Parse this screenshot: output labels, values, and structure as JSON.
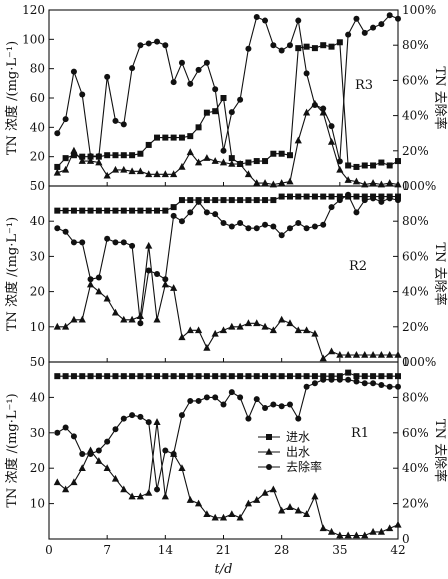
{
  "chart_data": {
    "type": "line",
    "xlabel": "t/d",
    "x_ticks": [
      0,
      7,
      14,
      21,
      28,
      35,
      42
    ],
    "x": [
      1,
      2,
      3,
      4,
      5,
      6,
      7,
      8,
      9,
      10,
      11,
      12,
      13,
      14,
      15,
      16,
      17,
      18,
      19,
      20,
      21,
      22,
      23,
      24,
      25,
      26,
      27,
      28,
      29,
      30,
      31,
      32,
      33,
      34,
      35,
      36,
      37,
      38,
      39,
      40,
      41,
      42
    ],
    "legend": [
      "进水",
      "出水",
      "去除率"
    ],
    "panels": [
      {
        "id": "R3",
        "label": "R3",
        "ylabel": "TN 浓度 /(mg·L⁻¹)",
        "y2label": "TN 去除率",
        "ylim": [
          0,
          120
        ],
        "yticks": [
          20,
          40,
          60,
          80,
          100,
          120
        ],
        "y2lim": [
          0,
          100
        ],
        "y2ticks": [
          "0",
          "20%",
          "40%",
          "60%",
          "80%",
          "100%"
        ],
        "series": [
          {
            "name": "进水",
            "marker": "square",
            "values": [
              13,
              19,
              21,
              20,
              20,
              20,
              21,
              21,
              21,
              21,
              22,
              28,
              33,
              33,
              33,
              33,
              34,
              40,
              50,
              51,
              60,
              19,
              15,
              16,
              17,
              17,
              22,
              22,
              21,
              94,
              95,
              94,
              96,
              95,
              98,
              14,
              13,
              14,
              14,
              16,
              14,
              17
            ]
          },
          {
            "name": "出水",
            "marker": "triangle",
            "values": [
              9,
              11,
              24,
              17,
              17,
              16,
              7,
              11,
              11,
              10,
              10,
              8,
              8,
              8,
              8,
              13,
              23,
              16,
              19,
              17,
              16,
              15,
              15,
              8,
              2,
              2,
              1,
              2,
              3,
              31,
              50,
              56,
              50,
              30,
              11,
              4,
              3,
              1,
              2,
              1,
              2,
              1
            ]
          },
          {
            "name": "去除率",
            "marker": "circle",
            "values": [
              30,
              38,
              65,
              52,
              17,
              17,
              62,
              37,
              35,
              67,
              80,
              81,
              82,
              80,
              59,
              70,
              58,
              66,
              70,
              55,
              20,
              42,
              49,
              78,
              96,
              94,
              80,
              77,
              80,
              94,
              64,
              46,
              44,
              34,
              14,
              86,
              95,
              87,
              90,
              92,
              97,
              95
            ]
          }
        ]
      },
      {
        "id": "R2",
        "label": "R2",
        "ylabel": "TN 浓度 /(mg·L⁻¹)",
        "y2label": "TN 去除率",
        "ylim": [
          0,
          50
        ],
        "yticks": [
          10,
          20,
          30,
          40,
          50
        ],
        "y2lim": [
          0,
          100
        ],
        "y2ticks": [
          "0",
          "20%",
          "40%",
          "60%",
          "80%",
          "100%"
        ],
        "series": [
          {
            "name": "进水",
            "marker": "square",
            "values": [
              43,
              43,
              43,
              43,
              43,
              43,
              43,
              43,
              43,
              43,
              43,
              43,
              43,
              43,
              44,
              46,
              46,
              46,
              46,
              46,
              46,
              46,
              46,
              46,
              46,
              46,
              46,
              47,
              47,
              47,
              47,
              47,
              47,
              47,
              47,
              47,
              47,
              47,
              47,
              47,
              47,
              47
            ]
          },
          {
            "name": "出水",
            "marker": "triangle",
            "values": [
              10,
              10,
              12,
              12,
              22,
              20,
              18,
              14,
              12,
              12,
              13,
              33,
              12,
              22,
              21,
              7,
              9,
              9,
              4,
              8,
              9,
              10,
              10,
              11,
              11,
              10,
              9,
              12,
              11,
              9,
              9,
              8,
              1,
              3,
              2,
              2,
              2,
              2,
              2,
              2,
              2,
              2
            ]
          },
          {
            "name": "去除率",
            "marker": "circle",
            "values": [
              76,
              74,
              68,
              68,
              47,
              48,
              70,
              68,
              68,
              66,
              22,
              52,
              50,
              47,
              83,
              80,
              85,
              91,
              85,
              84,
              79,
              77,
              79,
              76,
              76,
              78,
              77,
              72,
              76,
              79,
              76,
              77,
              78,
              88,
              92,
              95,
              85,
              92,
              93,
              91,
              93,
              92
            ]
          }
        ]
      },
      {
        "id": "R1",
        "label": "R1",
        "ylabel": "TN 浓度 /(mg·L⁻¹)",
        "y2label": "TN 去除率",
        "ylim": [
          0,
          50
        ],
        "yticks": [
          10,
          20,
          30,
          40,
          50
        ],
        "y2lim": [
          0,
          100
        ],
        "y2ticks": [
          "0",
          "20%",
          "40%",
          "60%",
          "80%",
          "100%"
        ],
        "series": [
          {
            "name": "进水",
            "marker": "square",
            "values": [
              46,
              46,
              46,
              46,
              46,
              46,
              46,
              46,
              46,
              46,
              46,
              46,
              46,
              46,
              46,
              46,
              46,
              46,
              46,
              46,
              46,
              46,
              46,
              46,
              46,
              46,
              46,
              46,
              46,
              46,
              46,
              46,
              46,
              46,
              46,
              47,
              46,
              46,
              46,
              46,
              46,
              46
            ]
          },
          {
            "name": "出水",
            "marker": "triangle",
            "values": [
              16,
              14,
              16,
              20,
              25,
              22,
              20,
              17,
              14,
              12,
              12,
              13,
              33,
              12,
              24,
              20,
              11,
              10,
              7,
              6,
              6,
              7,
              6,
              10,
              11,
              13,
              14,
              8,
              9,
              8,
              7,
              12,
              3,
              2,
              1,
              1,
              1,
              1,
              2,
              2,
              3,
              4
            ]
          },
          {
            "name": "去除率",
            "marker": "circle",
            "values": [
              60,
              63,
              58,
              48,
              48,
              50,
              55,
              62,
              68,
              70,
              69,
              66,
              28,
              50,
              48,
              70,
              78,
              78,
              80,
              80,
              76,
              83,
              80,
              68,
              79,
              74,
              76,
              75,
              76,
              68,
              86,
              88,
              90,
              90,
              90,
              90,
              89,
              88,
              88,
              87,
              86,
              86
            ]
          }
        ]
      }
    ]
  }
}
